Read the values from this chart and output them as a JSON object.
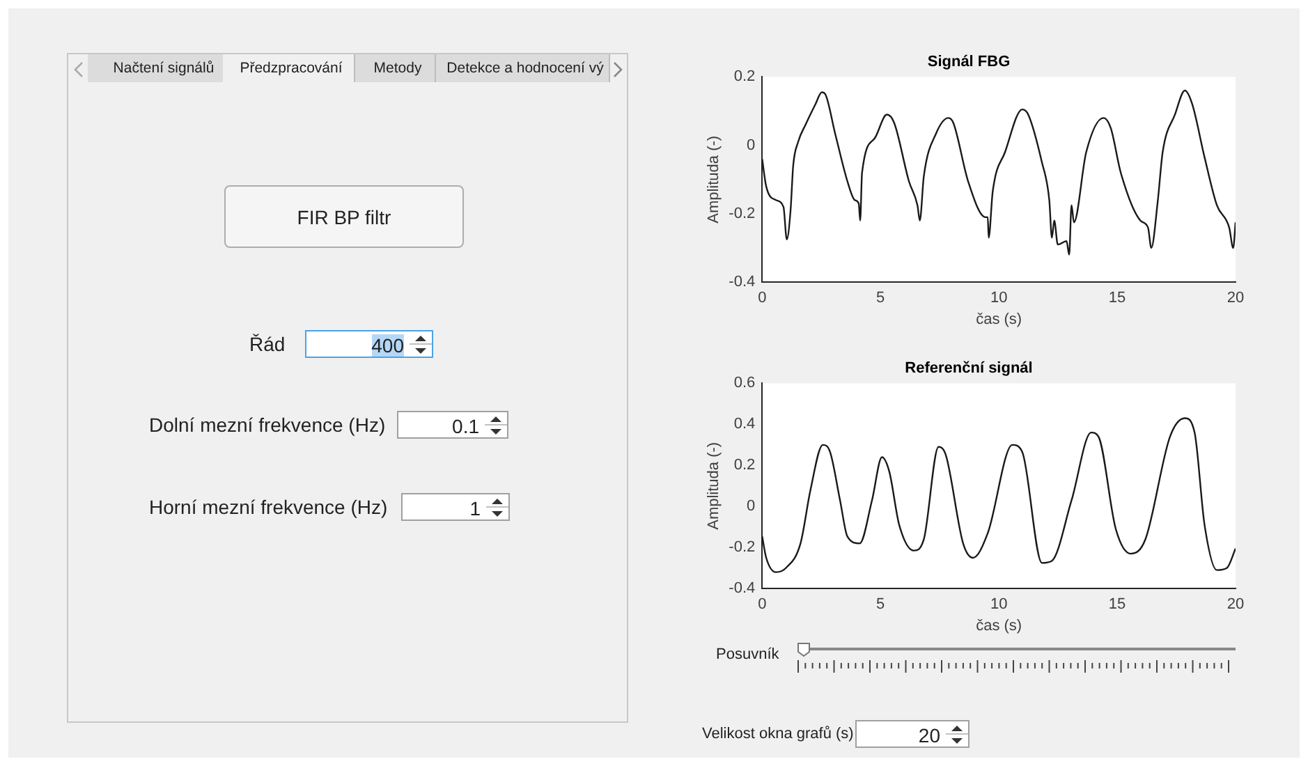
{
  "chart_data": [
    {
      "type": "other",
      "annotations": [
        "Načtení signálů",
        "Předzpracování",
        "Metody",
        "Detekce a hodnocení vý",
        "FIR BP filtr",
        "Řád",
        "400",
        "Dolní mezní frekvence (Hz)",
        "0.1",
        "Horní mezní frekvence (Hz)",
        "1"
      ]
    },
    {
      "type": "line",
      "title": "Signál FBG",
      "xlabel": "čas (s)",
      "ylabel": "Amplituda (-)",
      "xlim": [
        0,
        20
      ],
      "xticks": [
        0,
        5,
        10,
        15,
        20
      ],
      "ylim": [
        -0.4,
        0.2
      ],
      "yticks": [
        -0.4,
        -0.2,
        0,
        0.2
      ],
      "grid": false,
      "legend": false,
      "marker": "none",
      "line_style": "solid",
      "series": [
        {
          "color": "#1a1a1a",
          "x": [
            0,
            0.17,
            0.58,
            0.9,
            1.04,
            1.2,
            1.31,
            1.52,
            1.83,
            2.25,
            2.52,
            2.66,
            3.08,
            3.6,
            3.91,
            4.08,
            4.14,
            4.22,
            4.75,
            5.27,
            5.58,
            6.2,
            6.56,
            6.66,
            6.83,
            7.35,
            7.87,
            8.08,
            8.7,
            9.43,
            9.53,
            9.57,
            9.74,
            10.26,
            10.99,
            11.24,
            11.82,
            12.13,
            12.24,
            12.34,
            12.49,
            12.86,
            12.97,
            13.07,
            13.17,
            13.69,
            14.42,
            14.73,
            15.15,
            15.98,
            16.3,
            16.44,
            16.71,
            16.92,
            17.44,
            17.86,
            18.17,
            18.69,
            19.21,
            19.73,
            19.9,
            20
          ],
          "values": [
            -0.04,
            -0.12,
            -0.16,
            -0.18,
            -0.275,
            -0.19,
            -0.06,
            0.01,
            0.06,
            0.12,
            0.155,
            0.15,
            0.035,
            -0.105,
            -0.16,
            -0.17,
            -0.22,
            -0.08,
            0.02,
            0.09,
            0.065,
            -0.105,
            -0.175,
            -0.22,
            -0.09,
            0.035,
            0.08,
            0.065,
            -0.105,
            -0.21,
            -0.21,
            -0.27,
            -0.135,
            -0.02,
            0.105,
            0.09,
            -0.05,
            -0.16,
            -0.27,
            -0.22,
            -0.29,
            -0.28,
            -0.32,
            -0.175,
            -0.225,
            -0.02,
            0.08,
            0.05,
            -0.08,
            -0.22,
            -0.24,
            -0.3,
            -0.165,
            -0.02,
            0.09,
            0.16,
            0.12,
            -0.035,
            -0.175,
            -0.24,
            -0.3,
            -0.225
          ]
        }
      ]
    },
    {
      "type": "line",
      "title": "Referenční signál",
      "xlabel": "čas (s)",
      "ylabel": "Amplituda (-)",
      "xlim": [
        0,
        20
      ],
      "xticks": [
        0,
        5,
        10,
        15,
        20
      ],
      "ylim": [
        -0.4,
        0.6
      ],
      "yticks": [
        -0.4,
        -0.2,
        0,
        0.2,
        0.4,
        0.6
      ],
      "grid": false,
      "legend": false,
      "marker": "none",
      "line_style": "solid",
      "series": [
        {
          "color": "#1a1a1a",
          "x": [
            0,
            0.17,
            0.58,
            1.0,
            1.62,
            2.04,
            2.56,
            2.87,
            3.29,
            3.6,
            4.12,
            4.64,
            5.06,
            5.37,
            5.79,
            6.41,
            6.83,
            7.45,
            7.76,
            8.49,
            8.91,
            9.53,
            10.57,
            10.99,
            11.82,
            12.24,
            13.07,
            13.9,
            14.21,
            14.94,
            15.57,
            16.19,
            17.23,
            17.86,
            18.27,
            18.69,
            19.21,
            19.63,
            20
          ],
          "values": [
            -0.146,
            -0.25,
            -0.32,
            -0.3,
            -0.18,
            0.08,
            0.3,
            0.265,
            0.03,
            -0.146,
            -0.18,
            0.03,
            0.24,
            0.17,
            -0.09,
            -0.215,
            -0.16,
            0.29,
            0.25,
            -0.18,
            -0.25,
            -0.13,
            0.3,
            0.265,
            -0.275,
            -0.265,
            0.03,
            0.36,
            0.34,
            -0.11,
            -0.23,
            -0.16,
            0.34,
            0.43,
            0.36,
            -0.09,
            -0.31,
            -0.3,
            -0.205
          ]
        }
      ]
    },
    {
      "type": "other",
      "annotations": [
        "Posuvník",
        "Velikost okna grafů (s)",
        "20"
      ]
    }
  ]
}
